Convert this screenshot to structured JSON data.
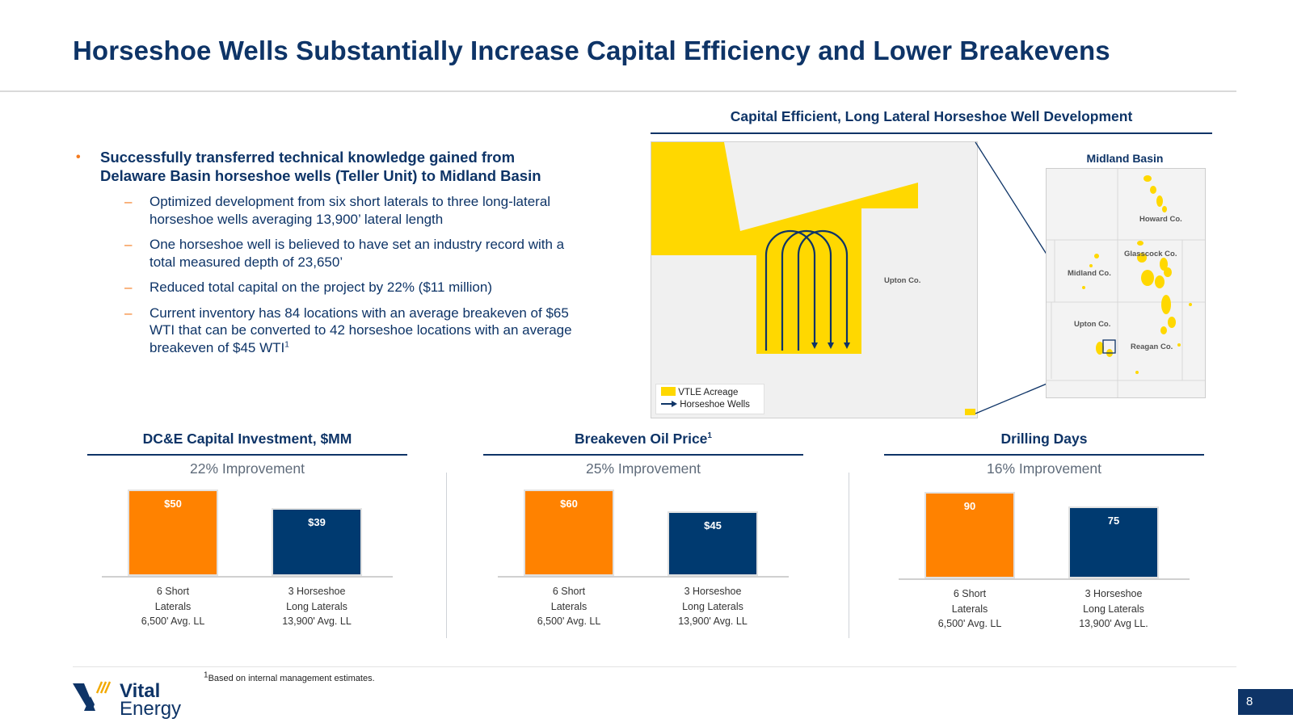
{
  "title": "Horseshoe Wells Substantially Increase Capital Efficiency and Lower Breakevens",
  "bullet_main": {
    "line1": "Successfully transferred technical knowledge gained from",
    "line2": "Delaware Basin horseshoe wells (Teller Unit) to Midland Basin"
  },
  "sub_bullets": [
    {
      "line1": "Optimized development from six short laterals to three long-lateral",
      "line2": "horseshoe wells averaging 13,900’ lateral length"
    },
    {
      "line1": "One horseshoe well is believed to have set an industry record with a",
      "line2": "total measured depth of 23,650’"
    },
    {
      "line1": "Reduced total capital on the project by 22% ($11 million)"
    },
    {
      "line1": "Current inventory has 84 locations with an average breakeven of $65",
      "line2": "WTI that can be converted to 42 horseshoe locations with an average",
      "line3": "breakeven of $45 WTI",
      "sup": "1"
    }
  ],
  "map": {
    "title": "Capital Efficient, Long Lateral Horseshoe Well Development",
    "county_label": "Upton Co.",
    "legend_acreage": "VTLE Acreage",
    "legend_wells": "Horseshoe Wells",
    "inset_title": "Midland Basin",
    "inset_counties": [
      "Howard Co.",
      "Glasscock Co.",
      "Midland Co.",
      "Upton Co.",
      "Reagan Co."
    ],
    "colors": {
      "acreage": "#ffd800",
      "wells": "#0e3467"
    }
  },
  "chart_data": [
    {
      "type": "bar",
      "title": "DC&E Capital Investment, $MM",
      "subtitle": "22% Improvement",
      "categories": [
        "6 Short\nLaterals\n6,500' Avg. LL",
        "3 Horseshoe\nLong Laterals\n13,900' Avg. LL"
      ],
      "values": [
        50,
        39
      ],
      "data_labels": [
        "$50",
        "$39"
      ],
      "colors": [
        "#ff8200",
        "#003a70"
      ],
      "ylim": [
        0,
        55
      ]
    },
    {
      "type": "bar",
      "title": "Breakeven Oil Price",
      "title_sup": "1",
      "subtitle": "25% Improvement",
      "categories": [
        "6 Short\nLaterals\n6,500' Avg. LL",
        "3 Horseshoe\nLong Laterals\n13,900' Avg. LL"
      ],
      "values": [
        60,
        45
      ],
      "data_labels": [
        "$60",
        "$45"
      ],
      "colors": [
        "#ff8200",
        "#003a70"
      ],
      "ylim": [
        0,
        66
      ]
    },
    {
      "type": "bar",
      "title": "Drilling Days",
      "subtitle": "16% Improvement",
      "categories": [
        "6 Short\nLaterals\n6,500' Avg. LL",
        "3 Horseshoe\nLong Laterals\n13,900' Avg LL."
      ],
      "values": [
        90,
        75
      ],
      "data_labels": [
        "90",
        "75"
      ],
      "colors": [
        "#ff8200",
        "#003a70"
      ],
      "ylim": [
        0,
        99
      ]
    }
  ],
  "footnote": {
    "sup": "1",
    "text": "Based on internal management estimates."
  },
  "logo": {
    "line1": "Vital",
    "line2": "Energy"
  },
  "page_number": "8"
}
